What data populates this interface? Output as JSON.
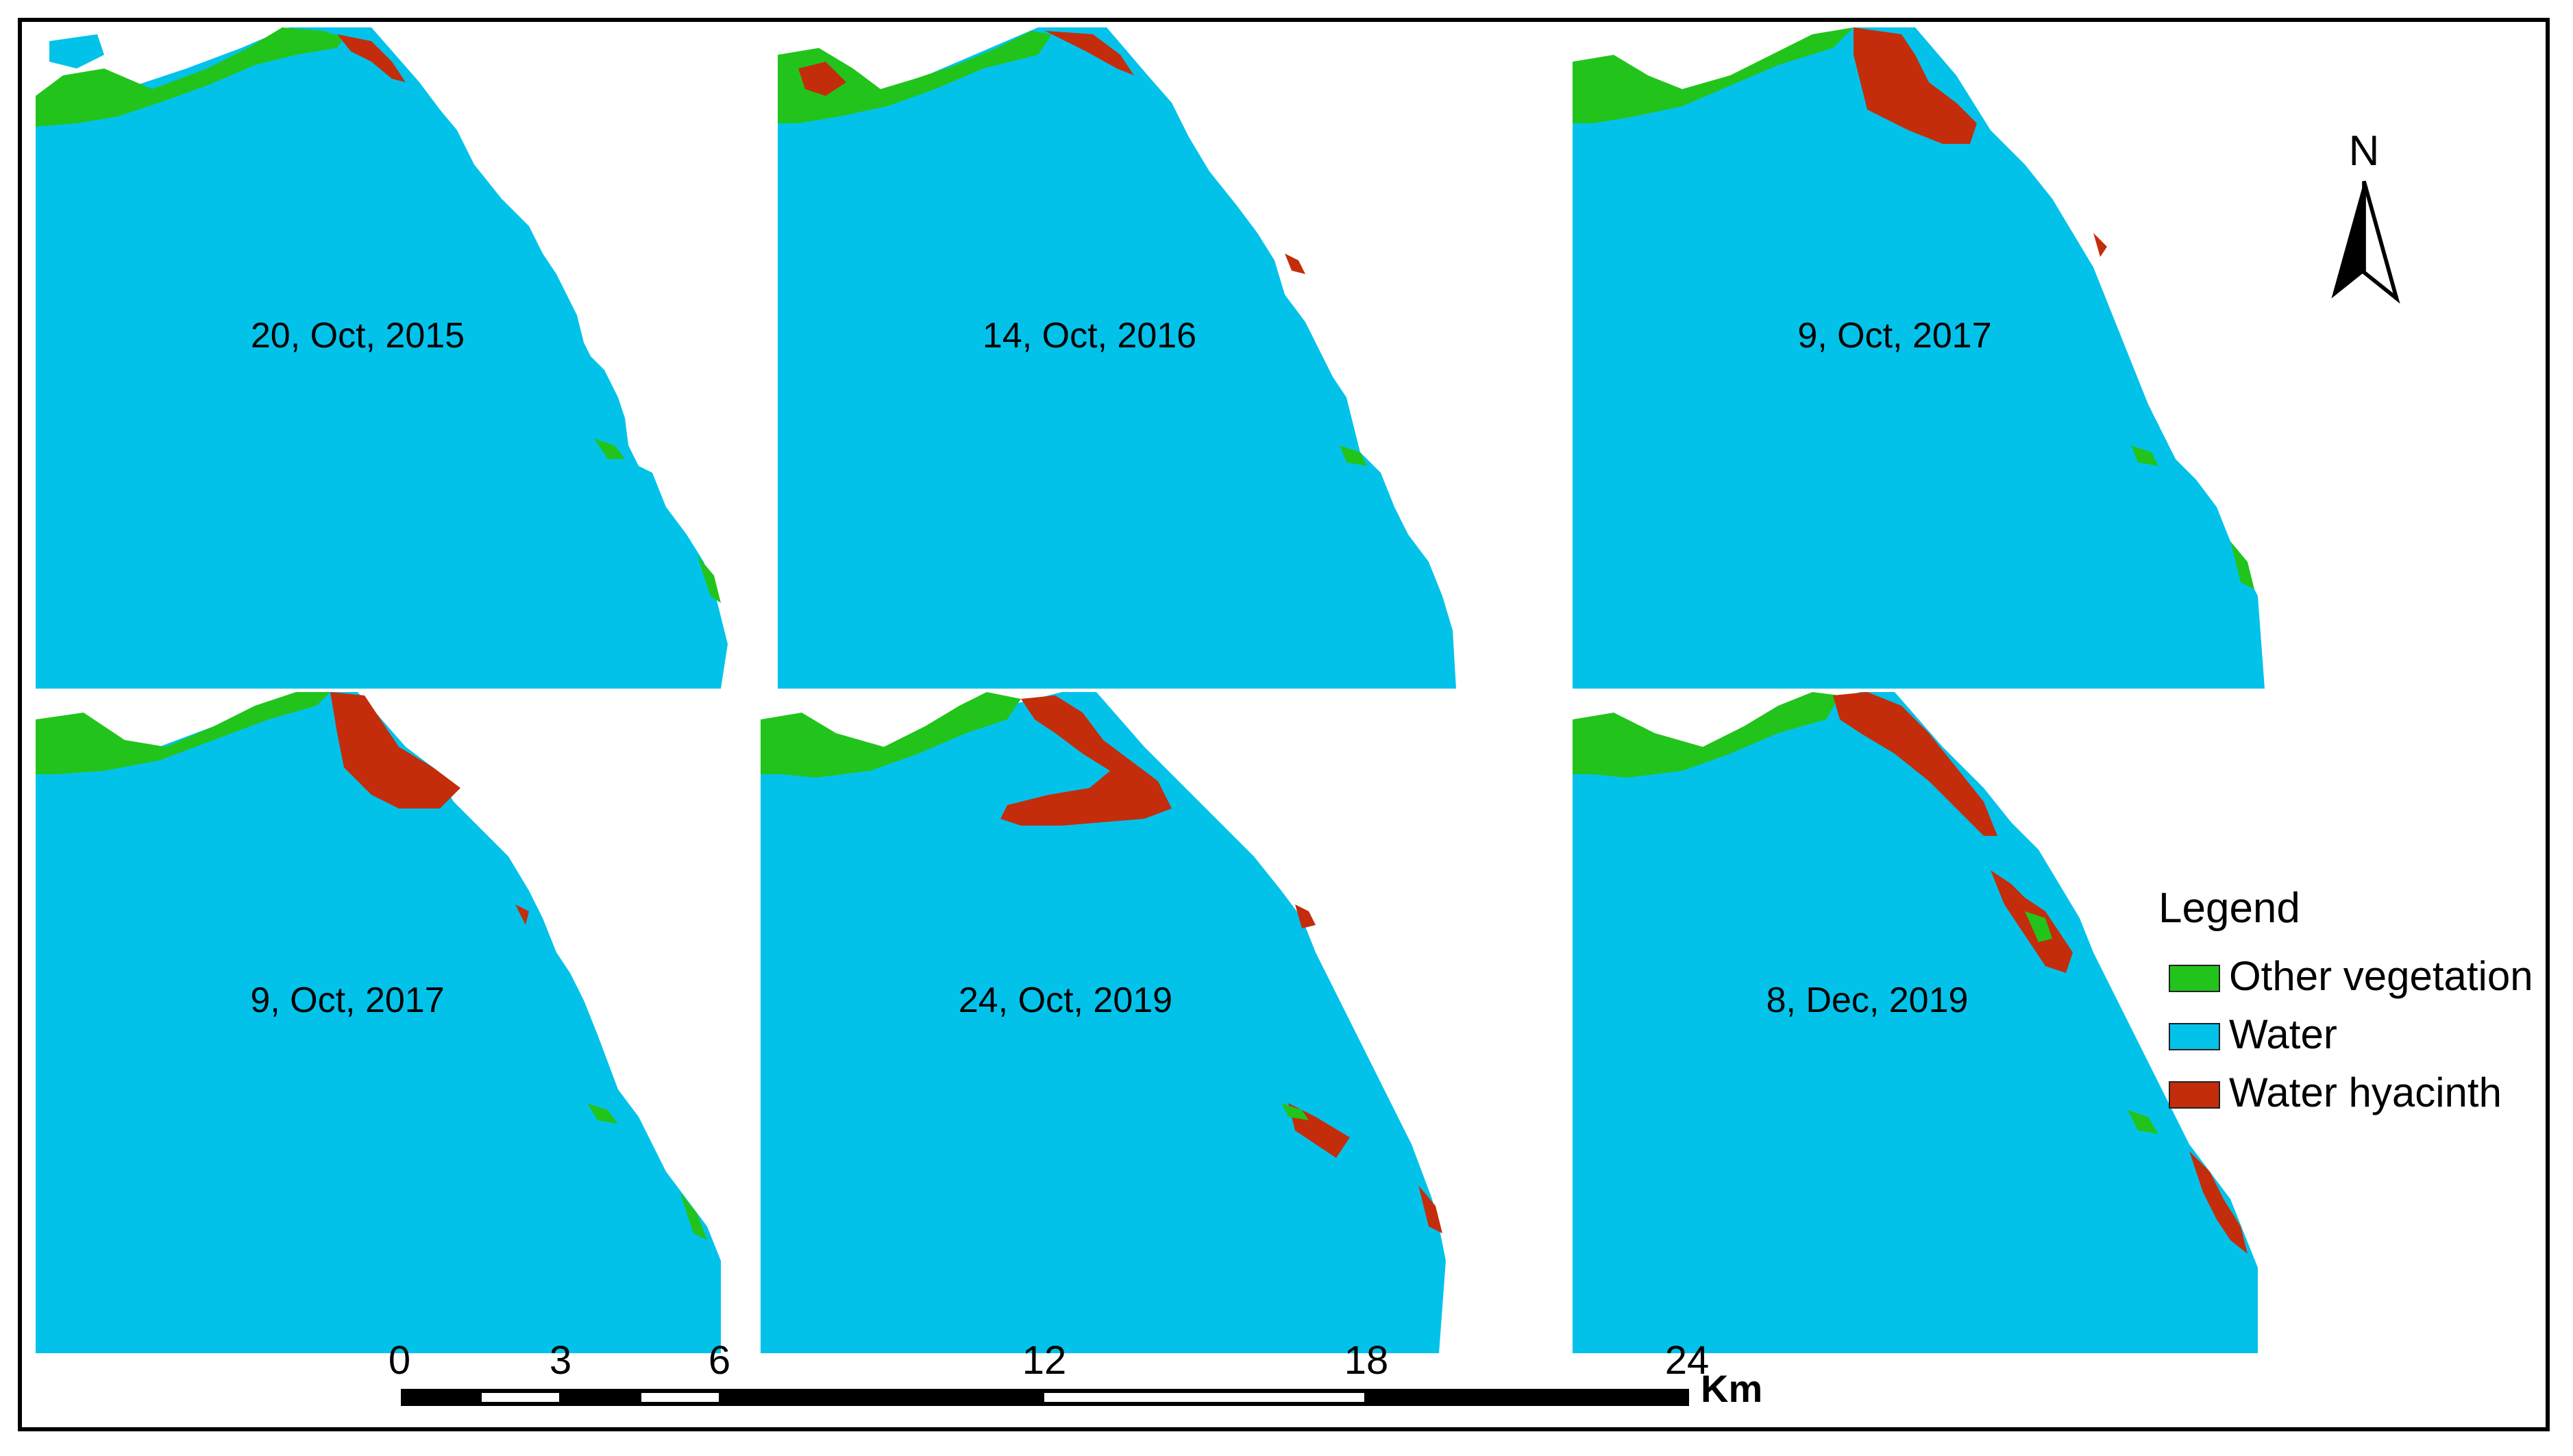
{
  "panels": [
    {
      "label": "20, Oct, 2015",
      "hyacinth_level": "minor"
    },
    {
      "label": "14, Oct, 2016",
      "hyacinth_level": "minor"
    },
    {
      "label": "9, Oct, 2017",
      "hyacinth_level": "moderate"
    },
    {
      "label": "9, Oct, 2017",
      "hyacinth_level": "moderate"
    },
    {
      "label": "24, Oct, 2019",
      "hyacinth_level": "large"
    },
    {
      "label": "8, Dec, 2019",
      "hyacinth_level": "extensive"
    }
  ],
  "north_arrow": {
    "letter": "N"
  },
  "legend": {
    "title": "Legend",
    "items": [
      {
        "label": "Other vegetation",
        "color": "#22c41c"
      },
      {
        "label": "Water",
        "color": "#03c2ea"
      },
      {
        "label": "Water hyacinth",
        "color": "#c42d0b"
      }
    ]
  },
  "scale_bar": {
    "ticks": [
      "0",
      "3",
      "6",
      "12",
      "18",
      "24"
    ],
    "unit": "Km"
  },
  "colors": {
    "water": "#03c2ea",
    "vegetation": "#22c41c",
    "hyacinth": "#c42d0b",
    "frame": "#000000"
  }
}
